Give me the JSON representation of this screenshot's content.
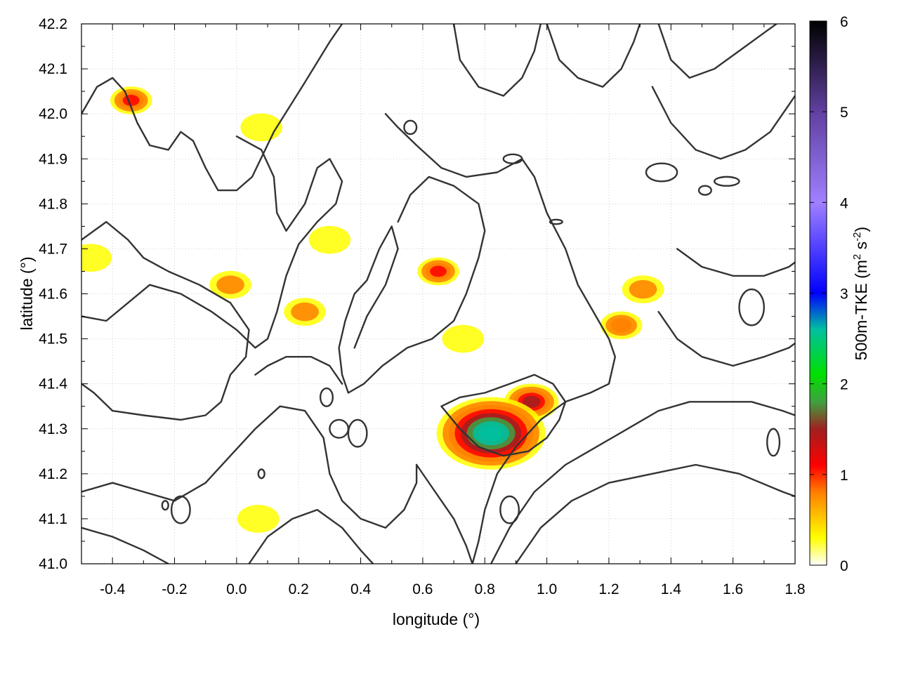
{
  "chart_data": {
    "type": "heatmap",
    "title": "",
    "xlabel": "longitude (°)",
    "ylabel": "latitude (°)",
    "colorbar_label": {
      "base": "500m-TKE (m",
      "sup1": "2",
      "mid": " s",
      "sup2": "-2",
      "end": ")"
    },
    "xlim": [
      -0.5,
      1.8
    ],
    "ylim": [
      41.0,
      42.2
    ],
    "clim": [
      0,
      6
    ],
    "xticks": [
      -0.4,
      -0.2,
      0.0,
      0.2,
      0.4,
      0.6,
      0.8,
      1.0,
      1.2,
      1.4,
      1.6,
      1.8
    ],
    "xtick_labels": [
      "-0.4",
      "-0.2",
      "0.0",
      "0.2",
      "0.4",
      "0.6",
      "0.8",
      "1.0",
      "1.2",
      "1.4",
      "1.6",
      "1.8"
    ],
    "yticks": [
      41.0,
      41.1,
      41.2,
      41.3,
      41.4,
      41.5,
      41.6,
      41.7,
      41.8,
      41.9,
      42.0,
      42.1,
      42.2
    ],
    "ytick_labels": [
      "41.0",
      "41.1",
      "41.2",
      "41.3",
      "41.4",
      "41.5",
      "41.6",
      "41.7",
      "41.8",
      "41.9",
      "42.0",
      "42.1",
      "42.2"
    ],
    "cticks": [
      0,
      1,
      2,
      3,
      4,
      5,
      6
    ],
    "ctick_labels": [
      "0",
      "1",
      "2",
      "3",
      "4",
      "5",
      "6"
    ],
    "grid": true,
    "colormap": [
      {
        "v": 0.0,
        "c": "#ffffff"
      },
      {
        "v": 0.3,
        "c": "#ffff00"
      },
      {
        "v": 0.8,
        "c": "#ff8000"
      },
      {
        "v": 1.1,
        "c": "#ff0000"
      },
      {
        "v": 1.5,
        "c": "#a02020"
      },
      {
        "v": 1.8,
        "c": "#40a040"
      },
      {
        "v": 2.1,
        "c": "#00e000"
      },
      {
        "v": 2.6,
        "c": "#00c0a0"
      },
      {
        "v": 3.0,
        "c": "#0000ff"
      },
      {
        "v": 4.0,
        "c": "#a080ff"
      },
      {
        "v": 5.0,
        "c": "#6040a0"
      },
      {
        "v": 6.0,
        "c": "#000000"
      }
    ],
    "tke_hotspots": [
      {
        "lon": -0.34,
        "lat": 42.03,
        "tke": 1.0
      },
      {
        "lon": 0.65,
        "lat": 41.65,
        "tke": 1.0
      },
      {
        "lon": 0.95,
        "lat": 41.36,
        "tke": 1.3
      },
      {
        "lon": 0.82,
        "lat": 41.29,
        "tke": 2.6
      },
      {
        "lon": 1.24,
        "lat": 41.53,
        "tke": 0.8
      },
      {
        "lon": 1.31,
        "lat": 41.61,
        "tke": 0.6
      },
      {
        "lon": 0.22,
        "lat": 41.56,
        "tke": 0.5
      },
      {
        "lon": -0.02,
        "lat": 41.62,
        "tke": 0.4
      },
      {
        "lon": 0.3,
        "lat": 41.72,
        "tke": 0.3
      },
      {
        "lon": 0.73,
        "lat": 41.5,
        "tke": 0.3
      },
      {
        "lon": 0.07,
        "lat": 41.1,
        "tke": 0.3
      },
      {
        "lon": -0.47,
        "lat": 41.68,
        "tke": 0.3
      },
      {
        "lon": 0.08,
        "lat": 41.97,
        "tke": 0.3
      }
    ],
    "contours": [
      [
        [
          -0.5,
          42.0
        ],
        [
          -0.45,
          42.06
        ],
        [
          -0.4,
          42.08
        ],
        [
          -0.36,
          42.05
        ],
        [
          -0.32,
          41.98
        ],
        [
          -0.28,
          41.93
        ],
        [
          -0.22,
          41.92
        ],
        [
          -0.18,
          41.96
        ],
        [
          -0.14,
          41.94
        ],
        [
          -0.1,
          41.88
        ],
        [
          -0.06,
          41.83
        ],
        [
          0.0,
          41.83
        ],
        [
          0.05,
          41.86
        ],
        [
          0.12,
          41.96
        ],
        [
          0.22,
          42.07
        ],
        [
          0.3,
          42.16
        ],
        [
          0.34,
          42.2
        ]
      ],
      [
        [
          -0.5,
          41.72
        ],
        [
          -0.42,
          41.76
        ],
        [
          -0.35,
          41.72
        ],
        [
          -0.3,
          41.68
        ],
        [
          -0.22,
          41.65
        ],
        [
          -0.12,
          41.62
        ],
        [
          -0.02,
          41.58
        ],
        [
          0.04,
          41.52
        ],
        [
          0.03,
          41.46
        ],
        [
          -0.02,
          41.42
        ],
        [
          -0.05,
          41.36
        ],
        [
          -0.1,
          41.33
        ],
        [
          -0.18,
          41.32
        ],
        [
          -0.3,
          41.33
        ],
        [
          -0.4,
          41.34
        ],
        [
          -0.46,
          41.38
        ],
        [
          -0.5,
          41.4
        ]
      ],
      [
        [
          -0.5,
          41.55
        ],
        [
          -0.42,
          41.54
        ],
        [
          -0.35,
          41.58
        ],
        [
          -0.28,
          41.62
        ],
        [
          -0.18,
          41.6
        ],
        [
          -0.08,
          41.56
        ],
        [
          0.0,
          41.52
        ],
        [
          0.06,
          41.48
        ],
        [
          0.1,
          41.5
        ],
        [
          0.13,
          41.56
        ],
        [
          0.16,
          41.64
        ],
        [
          0.2,
          41.71
        ],
        [
          0.26,
          41.76
        ],
        [
          0.32,
          41.8
        ],
        [
          0.34,
          41.85
        ],
        [
          0.3,
          41.9
        ],
        [
          0.26,
          41.88
        ],
        [
          0.22,
          41.8
        ],
        [
          0.16,
          41.74
        ],
        [
          0.13,
          41.78
        ],
        [
          0.12,
          41.86
        ],
        [
          0.08,
          41.92
        ],
        [
          0.0,
          41.95
        ]
      ],
      [
        [
          0.38,
          41.48
        ],
        [
          0.42,
          41.55
        ],
        [
          0.48,
          41.62
        ],
        [
          0.52,
          41.7
        ],
        [
          0.5,
          41.75
        ],
        [
          0.46,
          41.7
        ],
        [
          0.42,
          41.63
        ],
        [
          0.38,
          41.6
        ],
        [
          0.35,
          41.54
        ],
        [
          0.33,
          41.48
        ],
        [
          0.34,
          41.42
        ],
        [
          0.36,
          41.38
        ],
        [
          0.41,
          41.4
        ],
        [
          0.47,
          41.44
        ],
        [
          0.55,
          41.48
        ],
        [
          0.63,
          41.5
        ],
        [
          0.7,
          41.54
        ],
        [
          0.74,
          41.6
        ],
        [
          0.78,
          41.68
        ],
        [
          0.8,
          41.74
        ],
        [
          0.78,
          41.8
        ],
        [
          0.7,
          41.84
        ],
        [
          0.62,
          41.86
        ],
        [
          0.56,
          41.82
        ],
        [
          0.52,
          41.76
        ]
      ],
      [
        [
          0.48,
          42.0
        ],
        [
          0.52,
          41.97
        ],
        [
          0.58,
          41.93
        ],
        [
          0.66,
          41.88
        ],
        [
          0.74,
          41.86
        ],
        [
          0.84,
          41.87
        ],
        [
          0.92,
          41.9
        ],
        [
          0.96,
          41.86
        ],
        [
          1.0,
          41.78
        ],
        [
          1.06,
          41.7
        ],
        [
          1.1,
          41.62
        ],
        [
          1.15,
          41.56
        ],
        [
          1.2,
          41.5
        ],
        [
          1.22,
          41.46
        ],
        [
          1.2,
          41.4
        ],
        [
          1.14,
          41.38
        ],
        [
          1.06,
          41.36
        ],
        [
          0.98,
          41.32
        ],
        [
          0.9,
          41.26
        ],
        [
          0.84,
          41.2
        ],
        [
          0.8,
          41.12
        ],
        [
          0.78,
          41.05
        ],
        [
          0.76,
          41.0
        ]
      ],
      [
        [
          0.66,
          41.35
        ],
        [
          0.72,
          41.3
        ],
        [
          0.78,
          41.26
        ],
        [
          0.86,
          41.24
        ],
        [
          0.94,
          41.25
        ],
        [
          1.0,
          41.28
        ],
        [
          1.04,
          41.32
        ],
        [
          1.06,
          41.36
        ],
        [
          1.02,
          41.4
        ],
        [
          0.96,
          41.42
        ],
        [
          0.88,
          41.4
        ],
        [
          0.8,
          41.38
        ],
        [
          0.72,
          41.37
        ],
        [
          0.66,
          41.35
        ]
      ],
      [
        [
          0.58,
          41.22
        ],
        [
          0.64,
          41.16
        ],
        [
          0.7,
          41.1
        ],
        [
          0.74,
          41.04
        ],
        [
          0.76,
          41.0
        ]
      ],
      [
        [
          0.82,
          41.0
        ],
        [
          0.88,
          41.08
        ],
        [
          0.96,
          41.16
        ],
        [
          1.06,
          41.22
        ],
        [
          1.16,
          41.26
        ],
        [
          1.26,
          41.3
        ],
        [
          1.36,
          41.34
        ],
        [
          1.46,
          41.36
        ],
        [
          1.56,
          41.36
        ],
        [
          1.66,
          41.36
        ],
        [
          1.76,
          41.34
        ],
        [
          1.8,
          41.33
        ]
      ],
      [
        [
          0.9,
          41.0
        ],
        [
          0.98,
          41.08
        ],
        [
          1.08,
          41.14
        ],
        [
          1.2,
          41.18
        ],
        [
          1.34,
          41.2
        ],
        [
          1.48,
          41.22
        ],
        [
          1.62,
          41.2
        ],
        [
          1.76,
          41.16
        ],
        [
          1.8,
          41.15
        ]
      ],
      [
        [
          -0.5,
          41.16
        ],
        [
          -0.4,
          41.18
        ],
        [
          -0.3,
          41.16
        ],
        [
          -0.2,
          41.14
        ],
        [
          -0.1,
          41.18
        ],
        [
          -0.02,
          41.24
        ],
        [
          0.06,
          41.3
        ],
        [
          0.14,
          41.35
        ],
        [
          0.22,
          41.34
        ],
        [
          0.28,
          41.28
        ],
        [
          0.3,
          41.2
        ],
        [
          0.34,
          41.14
        ],
        [
          0.4,
          41.1
        ],
        [
          0.48,
          41.08
        ],
        [
          0.54,
          41.12
        ],
        [
          0.58,
          41.18
        ],
        [
          0.58,
          41.22
        ]
      ],
      [
        [
          -0.5,
          41.08
        ],
        [
          -0.4,
          41.06
        ],
        [
          -0.3,
          41.03
        ],
        [
          -0.22,
          41.0
        ]
      ],
      [
        [
          0.04,
          41.0
        ],
        [
          0.1,
          41.06
        ],
        [
          0.18,
          41.1
        ],
        [
          0.26,
          41.12
        ],
        [
          0.34,
          41.08
        ],
        [
          0.4,
          41.03
        ],
        [
          0.44,
          41.0
        ]
      ],
      [
        [
          1.0,
          42.2
        ],
        [
          1.04,
          42.12
        ],
        [
          1.1,
          42.08
        ],
        [
          1.18,
          42.06
        ],
        [
          1.24,
          42.1
        ],
        [
          1.28,
          42.16
        ],
        [
          1.3,
          42.2
        ]
      ],
      [
        [
          1.36,
          42.2
        ],
        [
          1.4,
          42.12
        ],
        [
          1.46,
          42.08
        ],
        [
          1.54,
          42.1
        ],
        [
          1.62,
          42.14
        ],
        [
          1.7,
          42.18
        ],
        [
          1.74,
          42.2
        ]
      ],
      [
        [
          1.34,
          42.06
        ],
        [
          1.4,
          41.98
        ],
        [
          1.48,
          41.92
        ],
        [
          1.56,
          41.9
        ],
        [
          1.64,
          41.92
        ],
        [
          1.72,
          41.96
        ],
        [
          1.78,
          42.02
        ],
        [
          1.8,
          42.04
        ]
      ],
      [
        [
          1.42,
          41.7
        ],
        [
          1.5,
          41.66
        ],
        [
          1.6,
          41.64
        ],
        [
          1.7,
          41.64
        ],
        [
          1.78,
          41.66
        ],
        [
          1.8,
          41.67
        ]
      ],
      [
        [
          1.36,
          41.56
        ],
        [
          1.42,
          41.5
        ],
        [
          1.5,
          41.46
        ],
        [
          1.6,
          41.44
        ],
        [
          1.7,
          41.46
        ],
        [
          1.78,
          41.48
        ],
        [
          1.8,
          41.49
        ]
      ],
      [
        [
          0.06,
          41.42
        ],
        [
          0.1,
          41.44
        ],
        [
          0.16,
          41.46
        ],
        [
          0.24,
          41.46
        ],
        [
          0.3,
          41.44
        ],
        [
          0.34,
          41.4
        ]
      ],
      [
        [
          0.7,
          42.2
        ],
        [
          0.72,
          42.12
        ],
        [
          0.78,
          42.06
        ],
        [
          0.86,
          42.04
        ],
        [
          0.92,
          42.08
        ],
        [
          0.96,
          42.14
        ],
        [
          0.98,
          42.2
        ]
      ]
    ],
    "contour_loops": [
      {
        "lon": 0.89,
        "lat": 41.9,
        "rx": 0.03,
        "ry": 0.01
      },
      {
        "lon": 1.03,
        "lat": 41.76,
        "rx": 0.02,
        "ry": 0.005
      },
      {
        "lon": 1.58,
        "lat": 41.85,
        "rx": 0.04,
        "ry": 0.01
      },
      {
        "lon": 1.51,
        "lat": 41.83,
        "rx": 0.02,
        "ry": 0.01
      },
      {
        "lon": 1.37,
        "lat": 41.87,
        "rx": 0.05,
        "ry": 0.02
      },
      {
        "lon": 0.39,
        "lat": 41.29,
        "rx": 0.03,
        "ry": 0.03
      },
      {
        "lon": 0.56,
        "lat": 41.97,
        "rx": 0.02,
        "ry": 0.015
      },
      {
        "lon": 1.66,
        "lat": 41.57,
        "rx": 0.04,
        "ry": 0.04
      },
      {
        "lon": 0.33,
        "lat": 41.3,
        "rx": 0.03,
        "ry": 0.02
      },
      {
        "lon": 0.29,
        "lat": 41.37,
        "rx": 0.02,
        "ry": 0.02
      },
      {
        "lon": 0.88,
        "lat": 41.12,
        "rx": 0.03,
        "ry": 0.03
      },
      {
        "lon": -0.18,
        "lat": 41.12,
        "rx": 0.03,
        "ry": 0.03
      },
      {
        "lon": -0.23,
        "lat": 41.13,
        "rx": 0.01,
        "ry": 0.01
      },
      {
        "lon": 0.08,
        "lat": 41.2,
        "rx": 0.01,
        "ry": 0.01
      },
      {
        "lon": 1.73,
        "lat": 41.27,
        "rx": 0.02,
        "ry": 0.03
      }
    ]
  }
}
